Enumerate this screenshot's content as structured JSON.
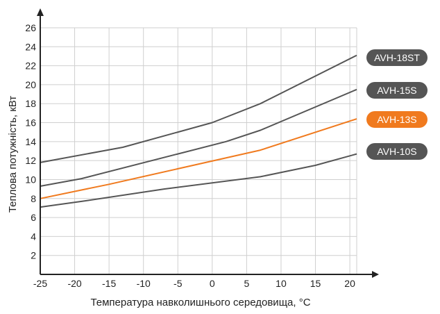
{
  "chart_data": {
    "type": "line",
    "xlabel": "Температура навколишнього середовища, °С",
    "ylabel": "Теплова потужність, кВт",
    "xlim": [
      -25,
      21
    ],
    "ylim": [
      0,
      26
    ],
    "x_ticks": [
      "-25",
      "-20",
      "-15",
      "-10",
      "-5",
      "0",
      "5",
      "10",
      "15",
      "20"
    ],
    "y_ticks": [
      "2",
      "4",
      "6",
      "8",
      "10",
      "12",
      "14",
      "16",
      "18",
      "20",
      "22",
      "24",
      "26"
    ],
    "grid": true,
    "legend": "right",
    "series": [
      {
        "name": "AVH-18ST",
        "color": "#555555",
        "points": [
          [
            -25,
            11.8
          ],
          [
            -13,
            13.4
          ],
          [
            0,
            16.0
          ],
          [
            7,
            18.0
          ],
          [
            21,
            23.1
          ]
        ]
      },
      {
        "name": "AVH-15S",
        "color": "#555555",
        "points": [
          [
            -25,
            9.3
          ],
          [
            -19,
            10.1
          ],
          [
            2,
            14.0
          ],
          [
            7,
            15.2
          ],
          [
            21,
            19.5
          ]
        ]
      },
      {
        "name": "AVH-13S",
        "color": "#f07a1e",
        "points": [
          [
            -25,
            8.0
          ],
          [
            -15,
            9.5
          ],
          [
            7,
            13.1
          ],
          [
            21,
            16.4
          ]
        ]
      },
      {
        "name": "AVH-10S",
        "color": "#555555",
        "points": [
          [
            -25,
            7.1
          ],
          [
            -19,
            7.7
          ],
          [
            -7,
            9.0
          ],
          [
            7,
            10.3
          ],
          [
            15,
            11.5
          ],
          [
            21,
            12.7
          ]
        ]
      }
    ]
  }
}
